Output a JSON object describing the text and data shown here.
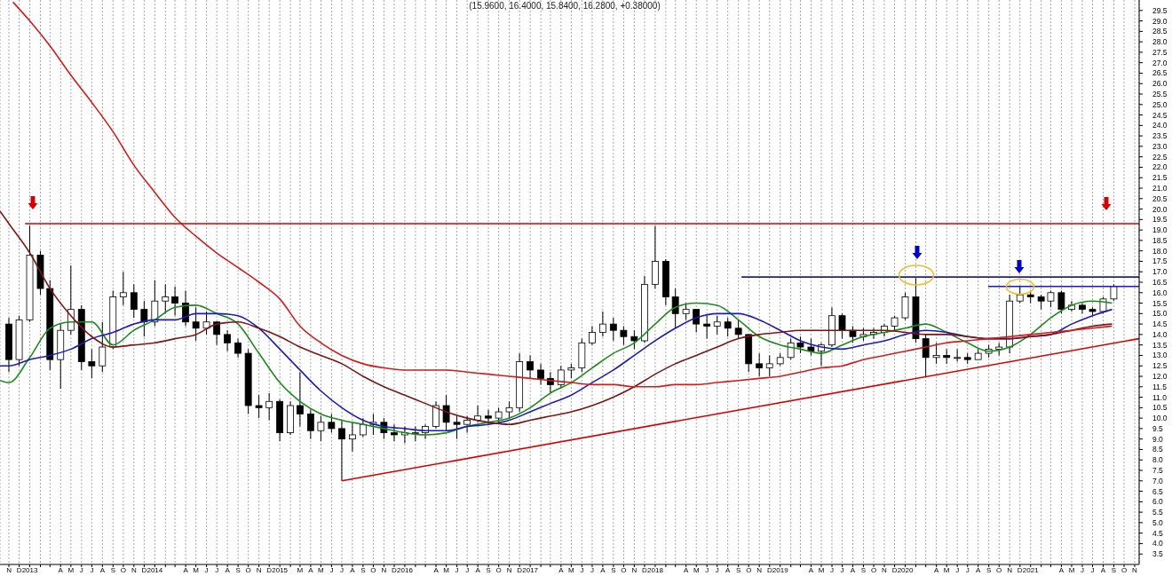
{
  "chart_data": {
    "type": "candlestick",
    "title": "(15.9600, 16.4000, 15.8400, 16.2800, +0.38000)",
    "color": "#000000",
    "grid": "x",
    "xlim": [
      "2012-10-20",
      "2021-11-28"
    ],
    "ylim": [
      3,
      30
    ],
    "xticks": [
      {
        "value": "2012-11-15",
        "label": "N"
      },
      {
        "value": "2012-12-15",
        "label": "D"
      },
      {
        "value": "2013-01-15",
        "label": "2013"
      },
      {
        "value": "2013-02-15",
        "label": null
      },
      {
        "value": "2013-03-15",
        "label": null
      },
      {
        "value": "2013-04-15",
        "label": "A"
      },
      {
        "value": "2013-05-15",
        "label": "M"
      },
      {
        "value": "2013-06-15",
        "label": "J"
      },
      {
        "value": "2013-07-15",
        "label": "J"
      },
      {
        "value": "2013-08-15",
        "label": "A"
      },
      {
        "value": "2013-09-15",
        "label": "S"
      },
      {
        "value": "2013-10-15",
        "label": "O"
      },
      {
        "value": "2013-11-15",
        "label": "N"
      },
      {
        "value": "2013-12-15",
        "label": "D"
      },
      {
        "value": "2014-01-15",
        "label": "2014"
      },
      {
        "value": "2014-02-15",
        "label": null
      },
      {
        "value": "2014-03-15",
        "label": null
      },
      {
        "value": "2014-04-15",
        "label": "A"
      },
      {
        "value": "2014-05-15",
        "label": "M"
      },
      {
        "value": "2014-06-15",
        "label": "J"
      },
      {
        "value": "2014-07-15",
        "label": "J"
      },
      {
        "value": "2014-08-15",
        "label": "A"
      },
      {
        "value": "2014-09-15",
        "label": "S"
      },
      {
        "value": "2014-10-15",
        "label": "O"
      },
      {
        "value": "2014-11-15",
        "label": "N"
      },
      {
        "value": "2014-12-15",
        "label": "D"
      },
      {
        "value": "2015-01-15",
        "label": "2015"
      },
      {
        "value": "2015-02-15",
        "label": null
      },
      {
        "value": "2015-03-15",
        "label": "M"
      },
      {
        "value": "2015-04-15",
        "label": "A"
      },
      {
        "value": "2015-05-15",
        "label": "M"
      },
      {
        "value": "2015-06-15",
        "label": "J"
      },
      {
        "value": "2015-07-15",
        "label": "J"
      },
      {
        "value": "2015-08-15",
        "label": "A"
      },
      {
        "value": "2015-09-15",
        "label": "S"
      },
      {
        "value": "2015-10-15",
        "label": "O"
      },
      {
        "value": "2015-11-15",
        "label": "N"
      },
      {
        "value": "2015-12-15",
        "label": "D"
      },
      {
        "value": "2016-01-15",
        "label": "2016"
      },
      {
        "value": "2016-02-15",
        "label": null
      },
      {
        "value": "2016-03-15",
        "label": null
      },
      {
        "value": "2016-04-15",
        "label": "A"
      },
      {
        "value": "2016-05-15",
        "label": "M"
      },
      {
        "value": "2016-06-15",
        "label": "J"
      },
      {
        "value": "2016-07-15",
        "label": "J"
      },
      {
        "value": "2016-08-15",
        "label": "A"
      },
      {
        "value": "2016-09-15",
        "label": "S"
      },
      {
        "value": "2016-10-15",
        "label": "O"
      },
      {
        "value": "2016-11-15",
        "label": "N"
      },
      {
        "value": "2016-12-15",
        "label": "D"
      },
      {
        "value": "2017-01-15",
        "label": "2017"
      },
      {
        "value": "2017-02-15",
        "label": null
      },
      {
        "value": "2017-03-15",
        "label": null
      },
      {
        "value": "2017-04-15",
        "label": "A"
      },
      {
        "value": "2017-05-15",
        "label": "M"
      },
      {
        "value": "2017-06-15",
        "label": "J"
      },
      {
        "value": "2017-07-15",
        "label": "J"
      },
      {
        "value": "2017-08-15",
        "label": "A"
      },
      {
        "value": "2017-09-15",
        "label": "S"
      },
      {
        "value": "2017-10-15",
        "label": "O"
      },
      {
        "value": "2017-11-15",
        "label": "N"
      },
      {
        "value": "2017-12-15",
        "label": "D"
      },
      {
        "value": "2018-01-15",
        "label": "2018"
      },
      {
        "value": "2018-02-15",
        "label": null
      },
      {
        "value": "2018-03-15",
        "label": null
      },
      {
        "value": "2018-04-15",
        "label": "A"
      },
      {
        "value": "2018-05-15",
        "label": "M"
      },
      {
        "value": "2018-06-15",
        "label": "J"
      },
      {
        "value": "2018-07-15",
        "label": "J"
      },
      {
        "value": "2018-08-15",
        "label": "A"
      },
      {
        "value": "2018-09-15",
        "label": "S"
      },
      {
        "value": "2018-10-15",
        "label": "O"
      },
      {
        "value": "2018-11-15",
        "label": "N"
      },
      {
        "value": "2018-12-15",
        "label": "D"
      },
      {
        "value": "2019-01-15",
        "label": "2019"
      },
      {
        "value": "2019-02-15",
        "label": null
      },
      {
        "value": "2019-03-15",
        "label": null
      },
      {
        "value": "2019-04-15",
        "label": "A"
      },
      {
        "value": "2019-05-15",
        "label": "M"
      },
      {
        "value": "2019-06-15",
        "label": "J"
      },
      {
        "value": "2019-07-15",
        "label": "J"
      },
      {
        "value": "2019-08-15",
        "label": "A"
      },
      {
        "value": "2019-09-15",
        "label": "S"
      },
      {
        "value": "2019-10-15",
        "label": "O"
      },
      {
        "value": "2019-11-15",
        "label": "N"
      },
      {
        "value": "2019-12-15",
        "label": "D"
      },
      {
        "value": "2020-01-15",
        "label": "2020"
      },
      {
        "value": "2020-02-15",
        "label": null
      },
      {
        "value": "2020-03-15",
        "label": null
      },
      {
        "value": "2020-04-15",
        "label": "A"
      },
      {
        "value": "2020-05-15",
        "label": "M"
      },
      {
        "value": "2020-06-15",
        "label": "J"
      },
      {
        "value": "2020-07-15",
        "label": "J"
      },
      {
        "value": "2020-08-15",
        "label": "A"
      },
      {
        "value": "2020-09-15",
        "label": "S"
      },
      {
        "value": "2020-10-15",
        "label": "O"
      },
      {
        "value": "2020-11-15",
        "label": "N"
      },
      {
        "value": "2020-12-15",
        "label": "D"
      },
      {
        "value": "2021-01-15",
        "label": "2021"
      },
      {
        "value": "2021-02-15",
        "label": null
      },
      {
        "value": "2021-03-15",
        "label": null
      },
      {
        "value": "2021-04-15",
        "label": "A"
      },
      {
        "value": "2021-05-15",
        "label": "M"
      },
      {
        "value": "2021-06-15",
        "label": "J"
      },
      {
        "value": "2021-07-15",
        "label": "J"
      },
      {
        "value": "2021-08-15",
        "label": "A"
      },
      {
        "value": "2021-09-15",
        "label": "S"
      },
      {
        "value": "2021-10-15",
        "label": "O"
      },
      {
        "value": "2021-11-15",
        "label": "N"
      }
    ],
    "yticks": [
      3.5,
      {
        "value": 4,
        "label": "4.0"
      },
      4.5,
      {
        "value": 5,
        "label": "5.0"
      },
      5.5,
      {
        "value": 6,
        "label": "6.0"
      },
      6.5,
      {
        "value": 7,
        "label": "7.0"
      },
      7.5,
      {
        "value": 8,
        "label": "8.0"
      },
      8.5,
      {
        "value": 9,
        "label": "9.0"
      },
      9.5,
      {
        "value": 10,
        "label": "10.0"
      },
      10.5,
      {
        "value": 11,
        "label": "11.0"
      },
      11.5,
      {
        "value": 12,
        "label": "12.0"
      },
      12.5,
      {
        "value": 13,
        "label": "13.0"
      },
      13.5,
      {
        "value": 14,
        "label": "14.0"
      },
      14.5,
      {
        "value": 15,
        "label": "15.0"
      },
      15.5,
      {
        "value": 16,
        "label": "16.0"
      },
      16.5,
      {
        "value": 17,
        "label": "17.0"
      },
      17.5,
      {
        "value": 18,
        "label": "18.0"
      },
      18.5,
      {
        "value": 19,
        "label": "19.0"
      },
      19.5,
      {
        "value": 20,
        "label": "20.0"
      },
      20.5,
      {
        "value": 21,
        "label": "21.0"
      },
      21.5,
      {
        "value": 22,
        "label": "22.0"
      },
      22.5,
      {
        "value": 23,
        "label": "23.0"
      },
      23.5,
      {
        "value": 24,
        "label": "24.0"
      },
      24.5,
      {
        "value": 25,
        "label": "25.0"
      },
      25.5,
      {
        "value": 26,
        "label": "26.0"
      },
      26.5,
      {
        "value": 27,
        "label": "27.0"
      },
      27.5,
      {
        "value": 28,
        "label": "28.0"
      },
      28.5,
      {
        "value": 29,
        "label": "29.0"
      },
      29.5
    ],
    "x": [
      "2012-11-15",
      "2012-12-15",
      "2013-01-15",
      "2013-02-15",
      "2013-03-15",
      "2013-04-15",
      "2013-05-15",
      "2013-06-15",
      "2013-07-15",
      "2013-08-15",
      "2013-09-15",
      "2013-10-15",
      "2013-11-15",
      "2013-12-15",
      "2014-01-15",
      "2014-02-15",
      "2014-03-15",
      "2014-04-15",
      "2014-05-15",
      "2014-06-15",
      "2014-07-15",
      "2014-08-15",
      "2014-09-15",
      "2014-10-15",
      "2014-11-15",
      "2014-12-15",
      "2015-01-15",
      "2015-02-15",
      "2015-03-15",
      "2015-04-15",
      "2015-05-15",
      "2015-06-15",
      "2015-07-15",
      "2015-08-15",
      "2015-09-15",
      "2015-10-15",
      "2015-11-15",
      "2015-12-15",
      "2016-01-15",
      "2016-02-15",
      "2016-03-15",
      "2016-04-15",
      "2016-05-15",
      "2016-06-15",
      "2016-07-15",
      "2016-08-15",
      "2016-09-15",
      "2016-10-15",
      "2016-11-15",
      "2016-12-15",
      "2017-01-15",
      "2017-02-15",
      "2017-03-15",
      "2017-04-15",
      "2017-05-15",
      "2017-06-15",
      "2017-07-15",
      "2017-08-15",
      "2017-09-15",
      "2017-10-15",
      "2017-11-15",
      "2017-12-15",
      "2018-01-15",
      "2018-02-15",
      "2018-03-15",
      "2018-04-15",
      "2018-05-15",
      "2018-06-15",
      "2018-07-15",
      "2018-08-15",
      "2018-09-15",
      "2018-10-15",
      "2018-11-15",
      "2018-12-15",
      "2019-01-15",
      "2019-02-15",
      "2019-03-15",
      "2019-04-15",
      "2019-05-15",
      "2019-06-15",
      "2019-07-15",
      "2019-08-15",
      "2019-09-15",
      "2019-10-15",
      "2019-11-15",
      "2019-12-15",
      "2020-01-15",
      "2020-02-15",
      "2020-03-15",
      "2020-04-15",
      "2020-05-15",
      "2020-06-15",
      "2020-07-15",
      "2020-08-15",
      "2020-09-15",
      "2020-10-15",
      "2020-11-15",
      "2020-12-15",
      "2021-01-15",
      "2021-02-15",
      "2021-03-15",
      "2021-04-15",
      "2021-05-15",
      "2021-06-15",
      "2021-07-15",
      "2021-08-15",
      "2021-09-15"
    ],
    "ohlc": [
      [
        14.5,
        14.8,
        12.2,
        12.8
      ],
      [
        12.8,
        14.9,
        12.5,
        14.7
      ],
      [
        14.7,
        19.2,
        14.6,
        17.8
      ],
      [
        17.8,
        18.0,
        15.9,
        16.2
      ],
      [
        16.2,
        16.6,
        12.3,
        12.8
      ],
      [
        12.8,
        14.5,
        11.4,
        14.2
      ],
      [
        14.2,
        17.3,
        14.0,
        15.2
      ],
      [
        15.2,
        15.4,
        12.3,
        12.7
      ],
      [
        12.7,
        13.3,
        11.9,
        12.5
      ],
      [
        12.5,
        14.6,
        12.2,
        13.4
      ],
      [
        13.4,
        16.1,
        13.3,
        15.8
      ],
      [
        15.8,
        17.0,
        15.4,
        16.0
      ],
      [
        16.0,
        16.4,
        14.8,
        15.2
      ],
      [
        15.2,
        15.6,
        13.9,
        14.6
      ],
      [
        14.6,
        16.6,
        14.4,
        15.6
      ],
      [
        15.6,
        16.4,
        15.0,
        15.8
      ],
      [
        15.8,
        16.3,
        14.9,
        15.5
      ],
      [
        15.5,
        16.1,
        14.4,
        14.6
      ],
      [
        14.6,
        15.3,
        13.7,
        14.3
      ],
      [
        14.3,
        15.1,
        14.0,
        14.6
      ],
      [
        14.6,
        14.6,
        13.5,
        14.0
      ],
      [
        14.0,
        14.2,
        13.2,
        13.6
      ],
      [
        13.6,
        13.8,
        12.9,
        13.1
      ],
      [
        13.1,
        13.3,
        10.2,
        10.6
      ],
      [
        10.6,
        11.1,
        10.0,
        10.5
      ],
      [
        10.5,
        11.2,
        9.9,
        10.8
      ],
      [
        10.8,
        10.9,
        8.9,
        9.3
      ],
      [
        9.3,
        10.8,
        9.2,
        10.6
      ],
      [
        10.6,
        12.2,
        9.6,
        10.2
      ],
      [
        10.2,
        10.4,
        9.0,
        9.4
      ],
      [
        9.4,
        10.1,
        8.9,
        9.8
      ],
      [
        9.8,
        10.2,
        9.3,
        9.5
      ],
      [
        9.5,
        9.9,
        7.0,
        9.0
      ],
      [
        9.0,
        9.8,
        8.4,
        9.2
      ],
      [
        9.2,
        10.0,
        9.1,
        9.7
      ],
      [
        9.7,
        10.2,
        9.2,
        9.8
      ],
      [
        9.8,
        10.0,
        9.0,
        9.3
      ],
      [
        9.3,
        9.7,
        8.9,
        9.2
      ],
      [
        9.2,
        9.6,
        8.8,
        9.3
      ],
      [
        9.3,
        9.6,
        8.9,
        9.3
      ],
      [
        9.3,
        9.7,
        9.0,
        9.6
      ],
      [
        9.6,
        10.8,
        9.5,
        10.6
      ],
      [
        10.6,
        11.1,
        9.4,
        9.8
      ],
      [
        9.8,
        10.1,
        9.0,
        9.7
      ],
      [
        9.7,
        10.1,
        9.3,
        9.9
      ],
      [
        9.9,
        10.6,
        9.8,
        10.1
      ],
      [
        10.1,
        10.4,
        9.7,
        10.0
      ],
      [
        10.0,
        10.5,
        9.8,
        10.3
      ],
      [
        10.3,
        10.8,
        10.0,
        10.5
      ],
      [
        10.5,
        13.1,
        10.3,
        12.7
      ],
      [
        12.7,
        13.0,
        11.9,
        12.3
      ],
      [
        12.3,
        12.6,
        11.6,
        11.9
      ],
      [
        11.9,
        12.2,
        11.2,
        11.6
      ],
      [
        11.6,
        12.5,
        11.4,
        12.3
      ],
      [
        12.3,
        12.6,
        11.9,
        12.4
      ],
      [
        12.4,
        13.8,
        12.2,
        13.6
      ],
      [
        13.6,
        14.4,
        13.5,
        14.1
      ],
      [
        14.1,
        15.1,
        13.9,
        14.5
      ],
      [
        14.5,
        14.8,
        13.7,
        14.2
      ],
      [
        14.2,
        14.4,
        13.5,
        13.9
      ],
      [
        13.9,
        14.2,
        13.3,
        13.7
      ],
      [
        13.7,
        16.8,
        13.6,
        16.4
      ],
      [
        16.4,
        19.2,
        16.2,
        17.5
      ],
      [
        17.5,
        17.6,
        15.4,
        15.8
      ],
      [
        15.8,
        16.2,
        14.3,
        15.0
      ],
      [
        15.0,
        15.5,
        14.7,
        15.2
      ],
      [
        15.2,
        15.2,
        14.1,
        14.5
      ],
      [
        14.5,
        14.9,
        13.8,
        14.4
      ],
      [
        14.4,
        14.9,
        14.0,
        14.6
      ],
      [
        14.6,
        14.8,
        13.9,
        14.3
      ],
      [
        14.3,
        14.7,
        13.8,
        14.0
      ],
      [
        14.0,
        14.0,
        12.2,
        12.6
      ],
      [
        12.6,
        13.1,
        12.0,
        12.4
      ],
      [
        12.4,
        13.0,
        12.0,
        12.6
      ],
      [
        12.6,
        13.1,
        12.5,
        12.9
      ],
      [
        12.9,
        13.8,
        12.8,
        13.6
      ],
      [
        13.6,
        13.9,
        13.1,
        13.4
      ],
      [
        13.4,
        13.8,
        13.0,
        13.2
      ],
      [
        13.2,
        13.6,
        12.5,
        13.5
      ],
      [
        13.5,
        15.3,
        13.4,
        14.9
      ],
      [
        14.9,
        15.0,
        13.8,
        14.2
      ],
      [
        14.2,
        14.4,
        13.6,
        13.9
      ],
      [
        13.9,
        14.3,
        13.7,
        14.0
      ],
      [
        14.0,
        14.3,
        13.8,
        14.1
      ],
      [
        14.1,
        14.5,
        13.9,
        14.4
      ],
      [
        14.4,
        14.9,
        14.2,
        14.8
      ],
      [
        14.8,
        16.0,
        14.7,
        15.8
      ],
      [
        15.8,
        16.7,
        13.6,
        13.8
      ],
      [
        13.8,
        14.0,
        12.0,
        12.9
      ],
      [
        12.9,
        13.6,
        12.6,
        13.0
      ],
      [
        13.0,
        13.3,
        12.6,
        12.9
      ],
      [
        12.9,
        13.3,
        12.7,
        12.9
      ],
      [
        12.9,
        13.1,
        12.6,
        12.8
      ],
      [
        12.8,
        13.3,
        12.8,
        13.1
      ],
      [
        13.1,
        13.5,
        12.9,
        13.3
      ],
      [
        13.3,
        13.6,
        13.0,
        13.4
      ],
      [
        13.4,
        15.9,
        13.1,
        15.6
      ],
      [
        15.6,
        16.3,
        15.5,
        15.9
      ],
      [
        15.9,
        16.1,
        15.5,
        15.8
      ],
      [
        15.8,
        15.9,
        15.2,
        15.6
      ],
      [
        15.6,
        16.1,
        15.3,
        16.0
      ],
      [
        16.0,
        16.1,
        15.0,
        15.2
      ],
      [
        15.2,
        15.6,
        15.1,
        15.4
      ],
      [
        15.4,
        15.5,
        15.0,
        15.2
      ],
      [
        15.2,
        15.3,
        14.9,
        15.1
      ],
      [
        15.1,
        15.8,
        15.0,
        15.7
      ],
      [
        15.7,
        16.4,
        15.6,
        16.3
      ]
    ],
    "series": [
      {
        "type": "line",
        "color": "#1e8a1e",
        "x": [
          "2012-10-20",
          "2012-11-15",
          "2013-01-15",
          "2013-03-15",
          "2013-05-15",
          "2013-07-15",
          "2013-09-15",
          "2013-11-15",
          "2014-01-15",
          "2014-03-15",
          "2014-05-15",
          "2014-07-15",
          "2014-09-15",
          "2014-11-15",
          "2015-01-15",
          "2015-03-15",
          "2015-05-15",
          "2015-07-15",
          "2015-09-15",
          "2015-11-15",
          "2016-01-15",
          "2016-03-15",
          "2016-05-15",
          "2016-07-15",
          "2016-09-15",
          "2016-11-15",
          "2017-01-15",
          "2017-03-15",
          "2017-05-15",
          "2017-07-15",
          "2017-09-15",
          "2017-11-15",
          "2018-01-15",
          "2018-03-15",
          "2018-05-15",
          "2018-07-15",
          "2018-09-15",
          "2018-11-15",
          "2019-01-15",
          "2019-03-15",
          "2019-05-15",
          "2019-07-15",
          "2019-09-15",
          "2019-11-15",
          "2020-01-15",
          "2020-03-15",
          "2020-05-15",
          "2020-07-15",
          "2020-09-15",
          "2020-11-15",
          "2021-01-15",
          "2021-03-15",
          "2021-05-15",
          "2021-07-15",
          "2021-09-10"
        ],
        "values": [
          11.8,
          11.7,
          12.9,
          14.3,
          14.6,
          14.6,
          13.5,
          14.2,
          14.7,
          15.3,
          15.4,
          15.0,
          14.5,
          13.1,
          11.7,
          10.8,
          10.2,
          9.9,
          9.7,
          9.5,
          9.3,
          9.2,
          9.3,
          9.6,
          9.8,
          10.0,
          10.5,
          11.2,
          11.7,
          12.4,
          13.1,
          13.6,
          14.5,
          15.3,
          15.5,
          15.4,
          14.7,
          13.9,
          13.5,
          13.3,
          13.1,
          13.5,
          13.9,
          14.1,
          14.3,
          14.5,
          14.1,
          13.6,
          13.2,
          13.4,
          14.0,
          14.8,
          15.4,
          15.6,
          15.5
        ]
      },
      {
        "type": "line",
        "color": "#1c1cb4",
        "x": [
          "2012-10-20",
          "2012-11-15",
          "2013-01-15",
          "2013-03-15",
          "2013-05-15",
          "2013-07-15",
          "2013-09-15",
          "2013-11-15",
          "2014-01-15",
          "2014-03-15",
          "2014-05-15",
          "2014-07-15",
          "2014-09-15",
          "2014-11-15",
          "2015-01-15",
          "2015-03-15",
          "2015-05-15",
          "2015-07-15",
          "2015-09-15",
          "2015-11-15",
          "2016-01-15",
          "2016-03-15",
          "2016-05-15",
          "2016-07-15",
          "2016-09-15",
          "2016-11-15",
          "2017-01-15",
          "2017-03-15",
          "2017-05-15",
          "2017-07-15",
          "2017-09-15",
          "2017-11-15",
          "2018-01-15",
          "2018-03-15",
          "2018-05-15",
          "2018-07-15",
          "2018-09-15",
          "2018-11-15",
          "2019-01-15",
          "2019-03-15",
          "2019-05-15",
          "2019-07-15",
          "2019-09-15",
          "2019-11-15",
          "2020-01-15",
          "2020-03-15",
          "2020-05-15",
          "2020-07-15",
          "2020-09-15",
          "2020-11-15",
          "2021-01-15",
          "2021-03-15",
          "2021-05-15",
          "2021-07-15",
          "2021-09-10"
        ],
        "values": [
          12.5,
          12.5,
          12.8,
          13.0,
          13.3,
          13.8,
          14.1,
          14.5,
          14.7,
          14.7,
          15.0,
          15.0,
          14.9,
          14.3,
          13.3,
          12.3,
          11.3,
          10.5,
          9.9,
          9.6,
          9.5,
          9.4,
          9.4,
          9.6,
          9.7,
          9.9,
          10.3,
          10.7,
          11.1,
          11.7,
          12.3,
          13.0,
          13.7,
          14.3,
          14.8,
          15.0,
          15.0,
          14.7,
          14.2,
          13.7,
          13.4,
          13.3,
          13.5,
          13.7,
          14.0,
          14.2,
          14.1,
          13.9,
          13.8,
          13.8,
          13.9,
          14.0,
          14.5,
          14.9,
          15.2
        ]
      },
      {
        "type": "line",
        "color": "#7a1616",
        "x": [
          "2012-10-20",
          "2012-11-15",
          "2013-01-15",
          "2013-03-15",
          "2013-05-15",
          "2013-07-15",
          "2013-09-15",
          "2013-11-15",
          "2014-01-15",
          "2014-03-15",
          "2014-05-15",
          "2014-07-15",
          "2014-09-15",
          "2014-11-15",
          "2015-01-15",
          "2015-03-15",
          "2015-05-15",
          "2015-07-15",
          "2015-09-15",
          "2015-11-15",
          "2016-01-15",
          "2016-03-15",
          "2016-05-15",
          "2016-07-15",
          "2016-09-15",
          "2016-11-15",
          "2017-01-15",
          "2017-03-15",
          "2017-05-15",
          "2017-07-15",
          "2017-09-15",
          "2017-11-15",
          "2018-01-15",
          "2018-03-15",
          "2018-05-15",
          "2018-07-15",
          "2018-09-15",
          "2018-11-15",
          "2019-01-15",
          "2019-03-15",
          "2019-05-15",
          "2019-07-15",
          "2019-09-15",
          "2019-11-15",
          "2020-01-15",
          "2020-03-15",
          "2020-05-15",
          "2020-07-15",
          "2020-09-15",
          "2020-11-15",
          "2021-01-15",
          "2021-03-15",
          "2021-05-15",
          "2021-07-15",
          "2021-09-10"
        ],
        "values": [
          19.9,
          19.3,
          17.9,
          16.2,
          14.9,
          13.9,
          13.4,
          13.5,
          13.6,
          13.8,
          14.0,
          14.5,
          14.6,
          14.3,
          13.9,
          13.4,
          13.0,
          12.6,
          12.0,
          11.5,
          11.1,
          10.7,
          10.3,
          10.0,
          9.8,
          9.7,
          9.9,
          10.1,
          10.3,
          10.6,
          11.0,
          11.5,
          12.1,
          12.6,
          13.0,
          13.4,
          13.8,
          14.0,
          14.1,
          14.2,
          14.2,
          14.2,
          14.2,
          14.2,
          14.1,
          14.0,
          14.0,
          13.9,
          13.8,
          13.8,
          13.9,
          14.0,
          14.2,
          14.4,
          14.5
        ]
      },
      {
        "type": "line",
        "color": "#d01c1c",
        "x": [
          "2012-11-27",
          "2013-01-15",
          "2013-03-15",
          "2013-05-15",
          "2013-07-15",
          "2013-09-15",
          "2013-11-15",
          "2014-01-15",
          "2014-03-15",
          "2014-05-15",
          "2014-07-15",
          "2014-09-15",
          "2014-11-15",
          "2015-01-15",
          "2015-03-15",
          "2015-05-15",
          "2015-07-15",
          "2015-09-15",
          "2015-11-15",
          "2016-01-15",
          "2016-03-15",
          "2016-05-15",
          "2016-07-15",
          "2016-09-15",
          "2016-11-15",
          "2017-01-15",
          "2017-03-15",
          "2017-05-15",
          "2017-07-15",
          "2017-09-15",
          "2017-11-15",
          "2018-01-15",
          "2018-03-15",
          "2018-05-15",
          "2018-07-15",
          "2018-09-15",
          "2018-11-15",
          "2019-01-15",
          "2019-03-15",
          "2019-05-15",
          "2019-07-15",
          "2019-09-15",
          "2019-11-15",
          "2020-01-15",
          "2020-03-15",
          "2020-05-15",
          "2020-07-15",
          "2020-09-15",
          "2020-11-15",
          "2021-01-15",
          "2021-03-15",
          "2021-05-15",
          "2021-07-15",
          "2021-09-10"
        ],
        "values": [
          29.9,
          29.0,
          27.8,
          26.4,
          25.1,
          23.7,
          22.1,
          20.8,
          19.6,
          18.7,
          17.9,
          17.2,
          16.5,
          15.7,
          14.4,
          13.6,
          13.0,
          12.6,
          12.4,
          12.3,
          12.3,
          12.3,
          12.2,
          12.1,
          12.0,
          11.9,
          11.8,
          11.7,
          11.6,
          11.6,
          11.5,
          11.5,
          11.6,
          11.6,
          11.7,
          11.8,
          11.9,
          12.0,
          12.2,
          12.4,
          12.5,
          12.8,
          13.0,
          13.2,
          13.4,
          13.6,
          13.7,
          13.8,
          13.9,
          14.0,
          14.1,
          14.2,
          14.3,
          14.4
        ]
      },
      {
        "type": "line",
        "color": "#d40000",
        "x": [
          "2013-01-01",
          "2021-11-28"
        ],
        "values": [
          19.3,
          19.3
        ]
      },
      {
        "type": "line",
        "color": "#d40000",
        "x": [
          "2015-07-15",
          "2021-11-28"
        ],
        "values": [
          7.0,
          13.8
        ]
      },
      {
        "type": "line",
        "color": "#1c1cb4",
        "x": [
          "2018-09-24",
          "2021-11-28"
        ],
        "values": [
          16.75,
          16.75
        ]
      },
      {
        "type": "line",
        "color": "#1c1cb4",
        "x": [
          "2020-09-13",
          "2021-11-28"
        ],
        "values": [
          16.3,
          16.3
        ]
      }
    ]
  }
}
